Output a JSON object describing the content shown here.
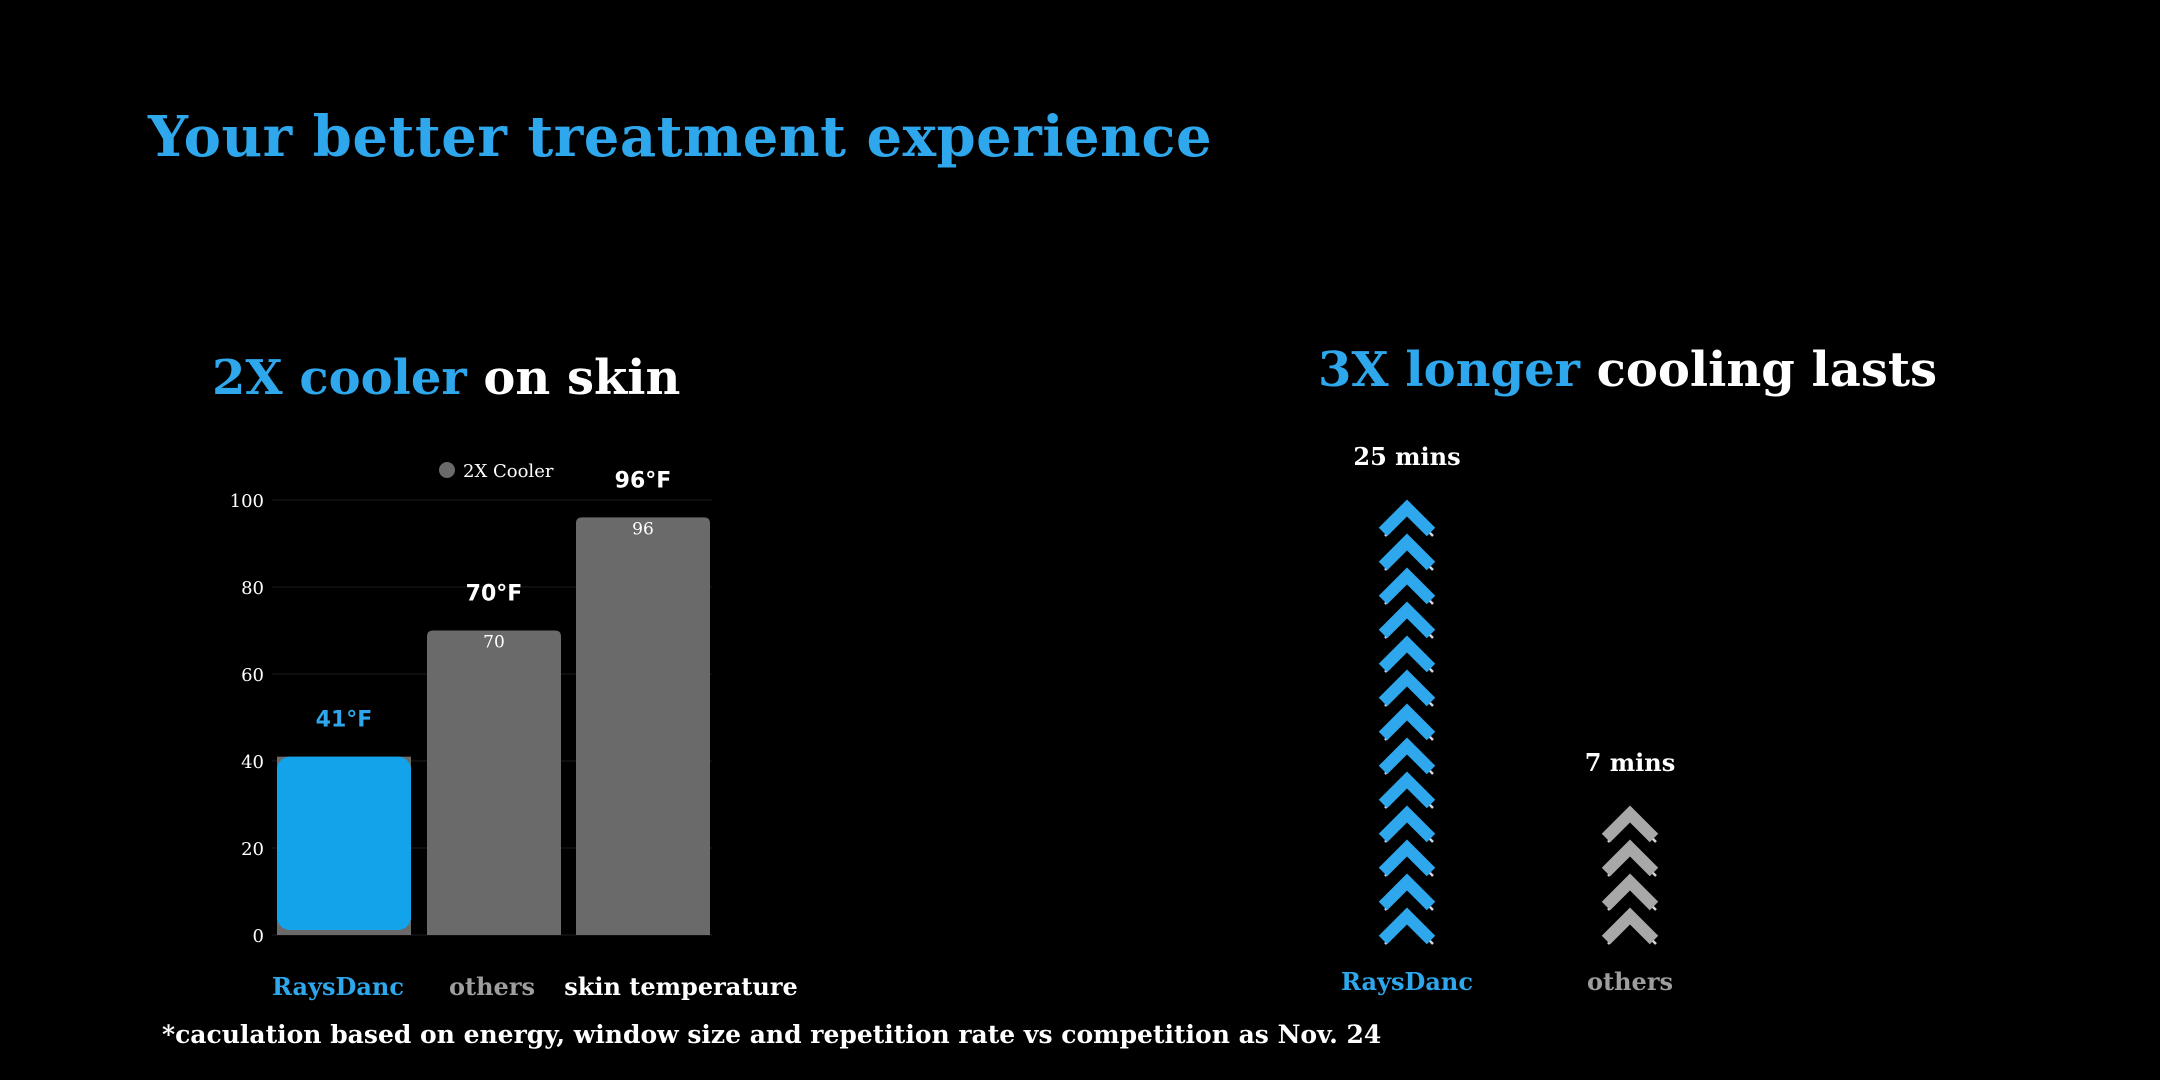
{
  "page": {
    "title": "Your better treatment experience",
    "footnote": "*caculation based on energy, window size and repetition rate vs competition as Nov. 24"
  },
  "left_section": {
    "title_accent": "2X cooler",
    "title_rest": " on skin"
  },
  "right_section": {
    "title_accent": "3X longer",
    "title_rest": " cooling lasts"
  },
  "colors": {
    "accent": "#2ea7ec",
    "bar_highlight": "#12a3ea",
    "bar_gray": "#6a6a6a",
    "chevron_gray": "#a8a8a8",
    "label_gray": "#9e9e9e"
  },
  "chart_data": [
    {
      "type": "bar",
      "categories": [
        "RaysDanc",
        "others",
        "skin temperature"
      ],
      "series": [
        {
          "name": "2X Cooler",
          "values": [
            41,
            70,
            96
          ]
        }
      ],
      "value_labels": [
        "41°F",
        "70°F",
        "96°F"
      ],
      "inner_labels": [
        "",
        "70",
        "96"
      ],
      "yticks": [
        "0",
        "20",
        "40",
        "60",
        "80",
        "100"
      ],
      "ylim": [
        0,
        100
      ],
      "grid": true,
      "legend": "top"
    },
    {
      "type": "bar",
      "categories": [
        "RaysDanc",
        "others"
      ],
      "values": [
        25,
        7
      ],
      "value_labels": [
        "25 mins",
        "7 mins"
      ],
      "unit": "mins",
      "marker": "chevron"
    }
  ]
}
